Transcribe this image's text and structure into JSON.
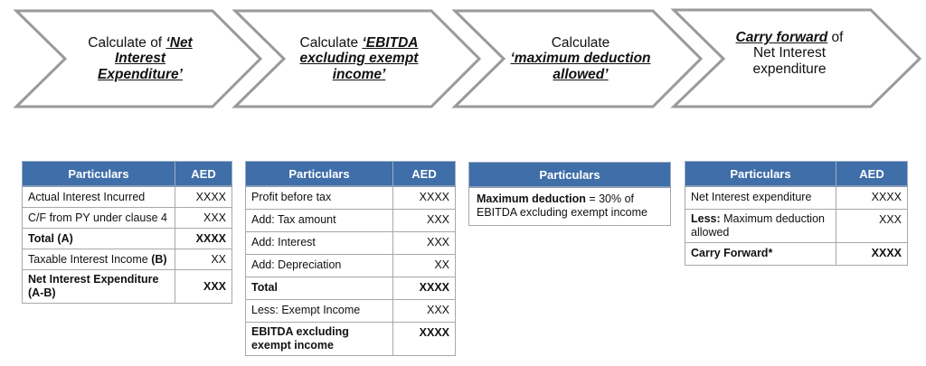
{
  "colors": {
    "header": "#3f6ea8",
    "chevron_stroke": "#9a9a9a"
  },
  "steps": [
    {
      "pre": "Calculate of ",
      "em": "‘Net Interest Expenditure’",
      "post": ""
    },
    {
      "pre": "Calculate ",
      "em": "‘EBITDA excluding exempt income’",
      "post": ""
    },
    {
      "pre": "Calculate ",
      "em": "‘maximum deduction allowed’",
      "post": ""
    },
    {
      "pre": "",
      "em": "Carry forward",
      "post": " of Net Interest expenditure"
    }
  ],
  "tables": [
    {
      "headers": [
        "Particulars",
        "AED"
      ],
      "rows": [
        {
          "label": "Actual Interest Incurred",
          "value": "XXXX",
          "bold": false
        },
        {
          "label": "C/F from PY under clause 4",
          "value": "XXX",
          "bold": false
        },
        {
          "label": "Total (A)",
          "value": "XXXX",
          "bold": true
        },
        {
          "label": "Taxable Interest Income ",
          "label_bold": "(B)",
          "value": "XX",
          "bold": false
        },
        {
          "label": "Net Interest Expenditure (A-B)",
          "value": "XXX",
          "bold": true
        }
      ]
    },
    {
      "headers": [
        "Particulars",
        "AED"
      ],
      "rows": [
        {
          "label": "Profit before tax",
          "value": "XXXX",
          "bold": false
        },
        {
          "label": "Add: Tax amount",
          "value": "XXX",
          "bold": false
        },
        {
          "label": "Add: Interest",
          "value": "XXX",
          "bold": false
        },
        {
          "label": "Add: Depreciation",
          "value": "XX",
          "bold": false
        },
        {
          "label": "Total",
          "value": "XXXX",
          "bold": true
        },
        {
          "label": "Less: Exempt Income",
          "value": "XXX",
          "bold": false
        },
        {
          "label": "EBITDA excluding exempt income",
          "value": "XXXX",
          "bold": true
        }
      ]
    },
    {
      "headers": [
        "Particulars"
      ],
      "rows": [
        {
          "label_bold": "Maximum deduction",
          "label": " = 30% of EBITDA excluding exempt income"
        }
      ]
    },
    {
      "headers": [
        "Particulars",
        "AED"
      ],
      "rows": [
        {
          "label": "Net Interest expenditure",
          "value": "XXXX",
          "bold": false
        },
        {
          "label_bold": "Less:",
          "label": " Maximum deduction allowed",
          "value": "XXX",
          "bold": false
        },
        {
          "label": "Carry Forward*",
          "value": "XXXX",
          "bold": true
        }
      ]
    }
  ]
}
